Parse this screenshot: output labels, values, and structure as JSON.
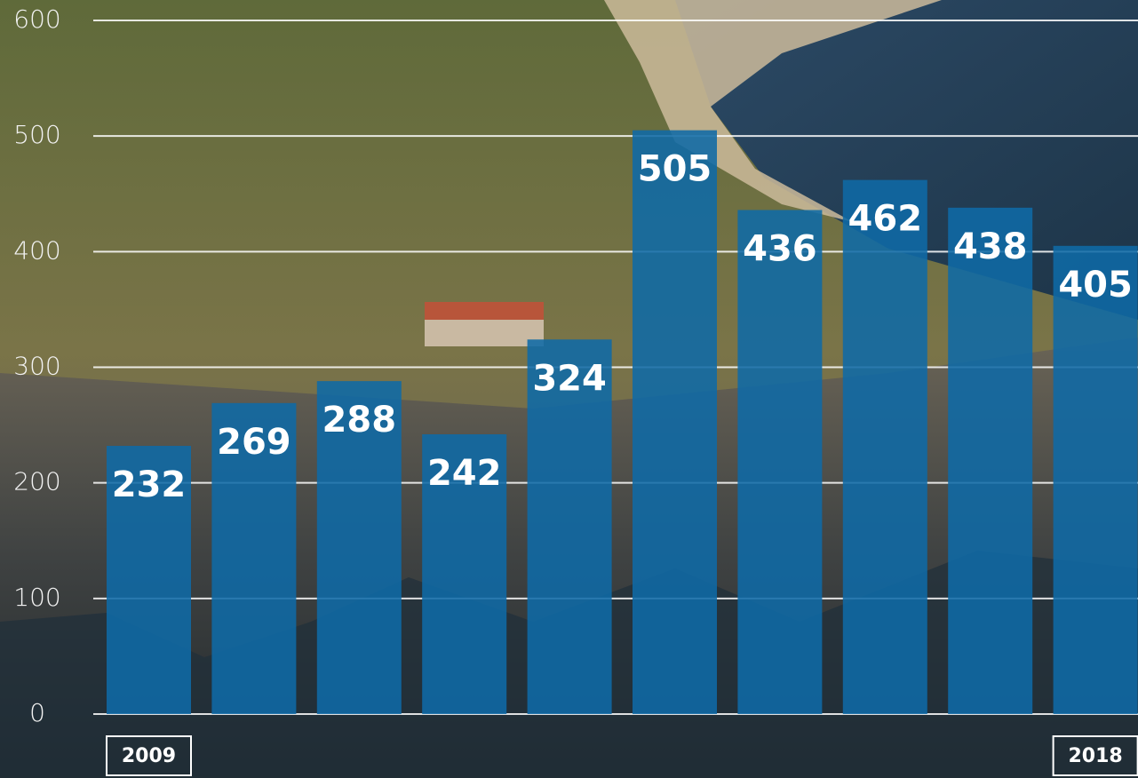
{
  "chart_data": {
    "type": "bar",
    "categories": [
      "2009",
      null,
      null,
      null,
      null,
      null,
      null,
      null,
      null,
      "2018"
    ],
    "values": [
      232,
      269,
      288,
      242,
      324,
      505,
      436,
      462,
      438,
      405
    ],
    "color": "#0f6aa6",
    "ylim": [
      0,
      600
    ],
    "yticks": [
      0,
      100,
      200,
      300,
      400,
      500,
      600
    ],
    "grid": true
  }
}
